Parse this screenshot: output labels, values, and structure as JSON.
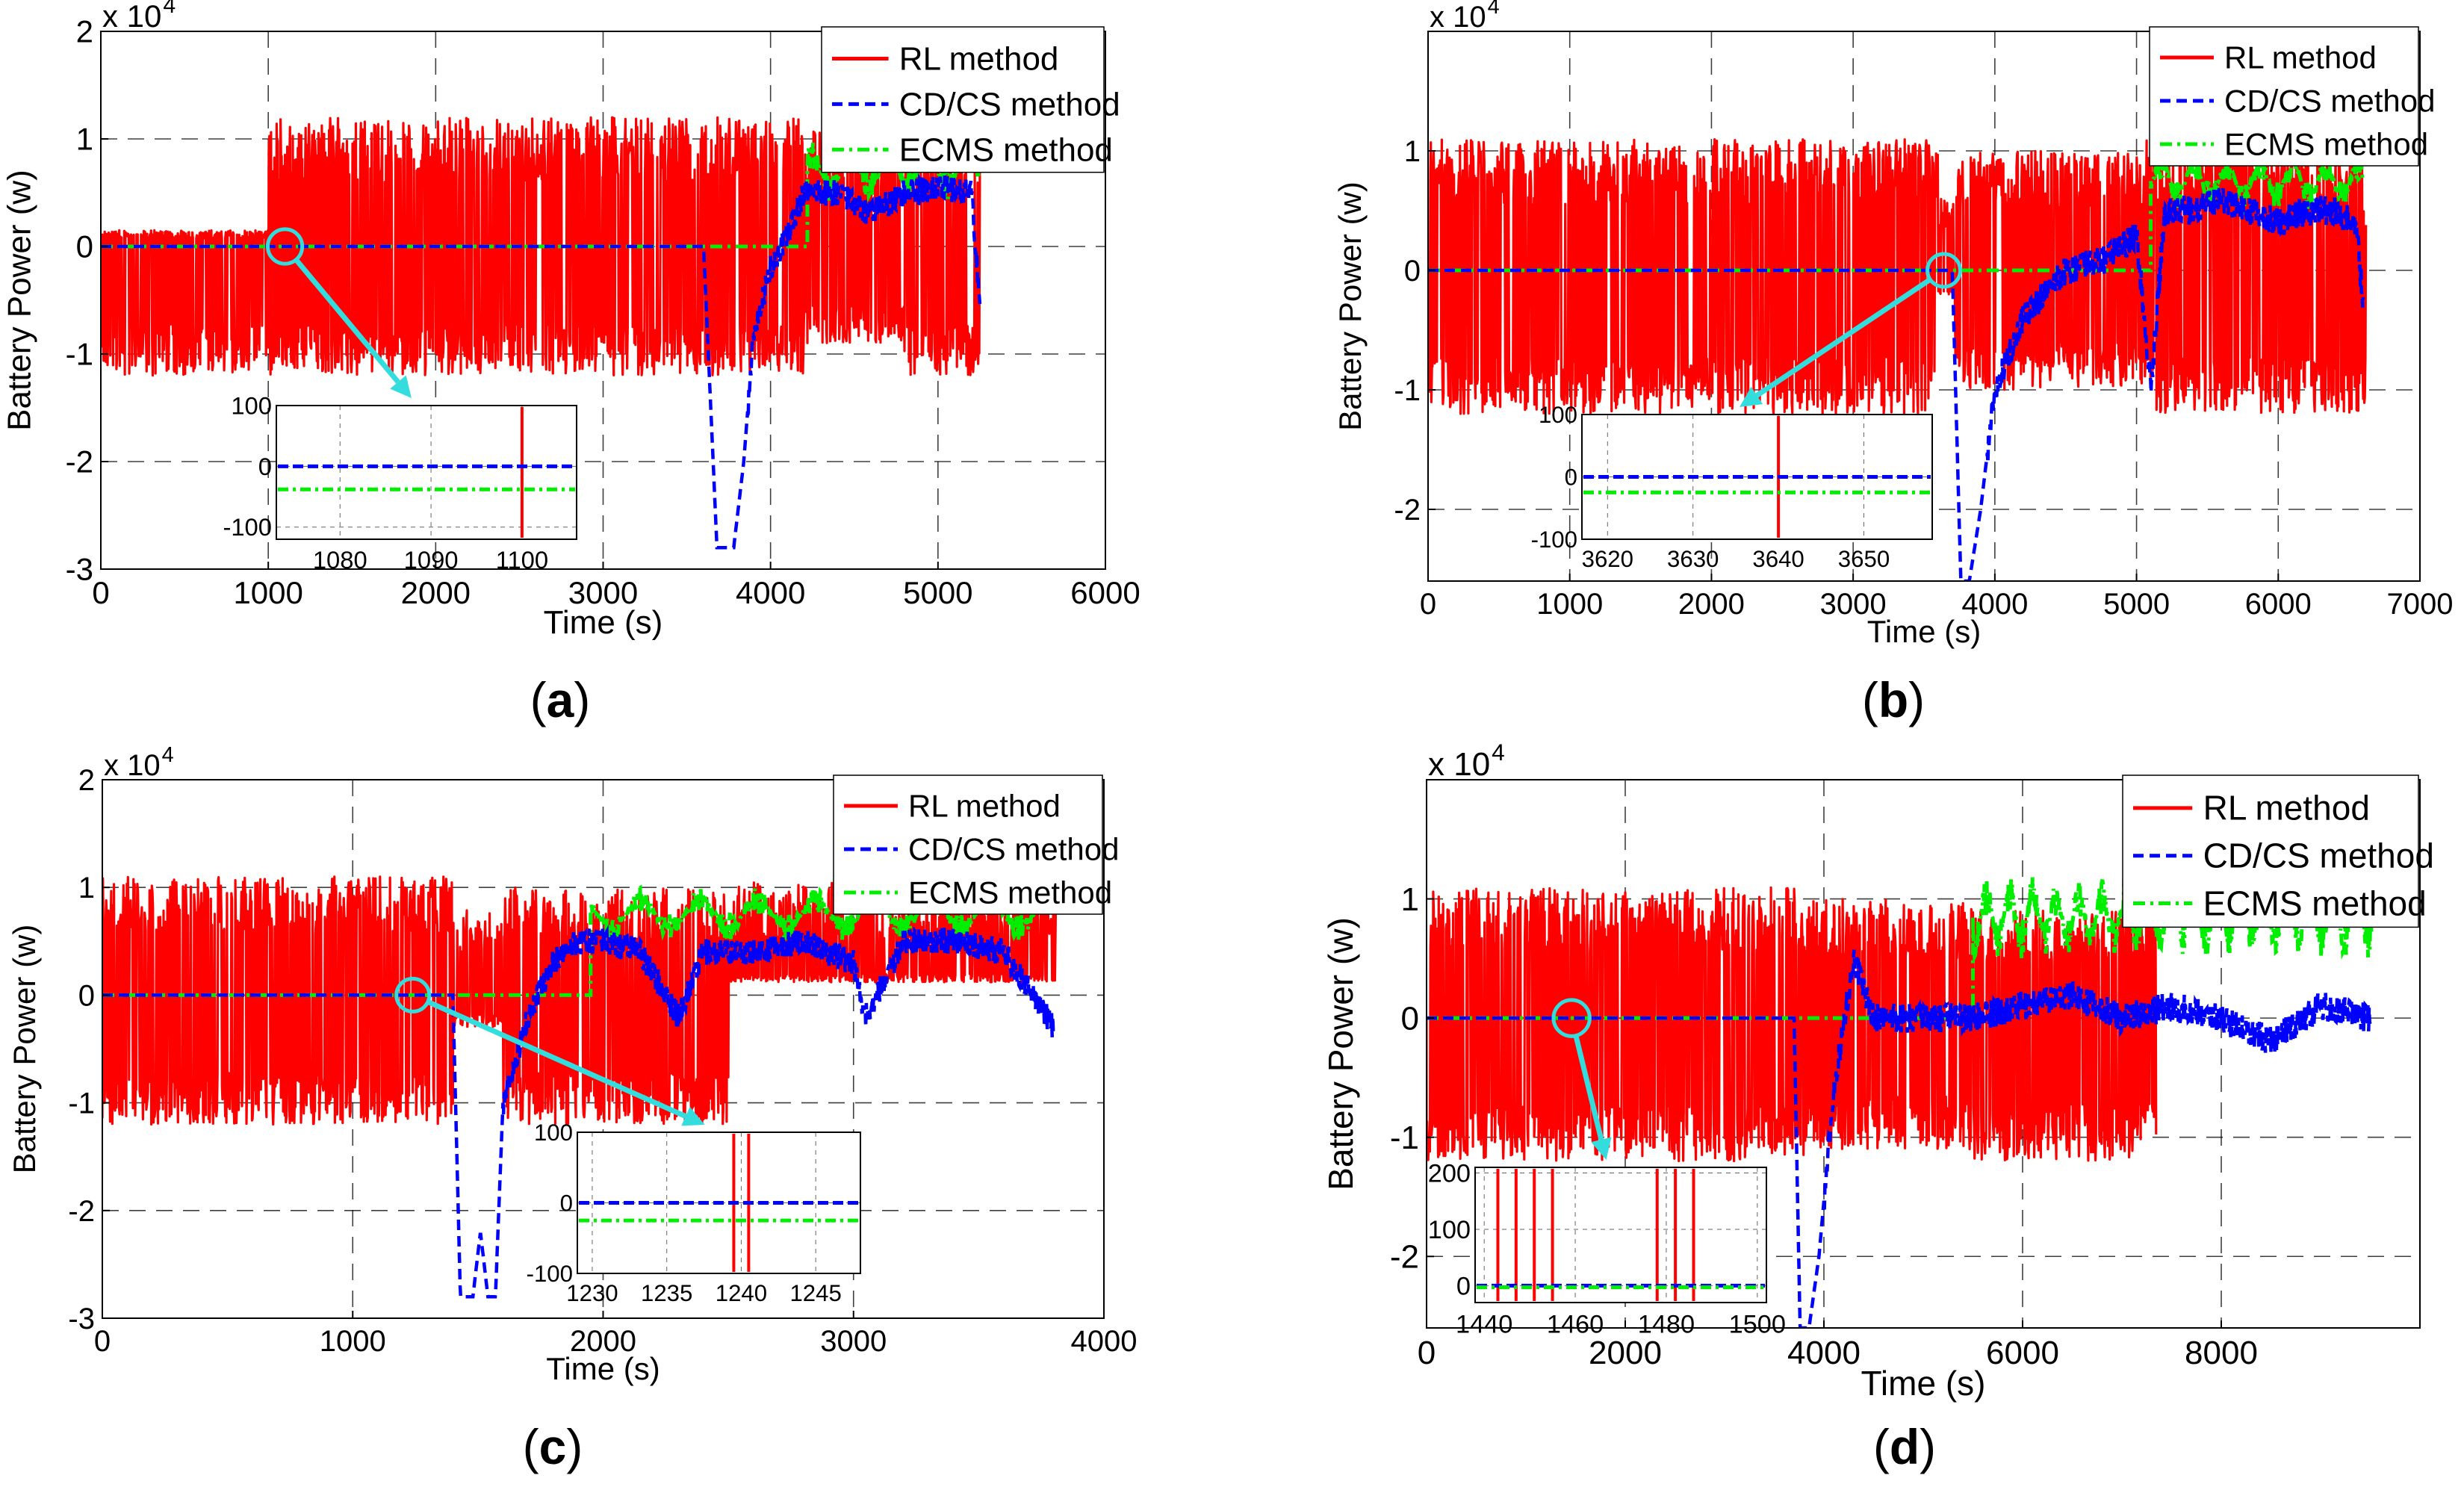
{
  "figure": {
    "legend_labels": [
      "RL method",
      "CD/CS method",
      "ECMS method"
    ],
    "ylabel": "Battery Power (w)",
    "xlabel": "Time (s)",
    "scale_label": "x 10",
    "scale_exponent": "4",
    "colors": {
      "rl": "#ff0000",
      "cdcs": "#0000ff",
      "ecms": "#00ee00",
      "arrow": "#33dddd",
      "grid": "#000000"
    }
  },
  "chart_data": [
    {
      "id": "a",
      "letter": "a",
      "type": "line",
      "title": "",
      "xlabel": "Time (s)",
      "ylabel": "Battery Power (w)",
      "xlim": [
        0,
        6000
      ],
      "ylim": [
        -3,
        2
      ],
      "y_scale": "x 10^4",
      "xticks": [
        0,
        1000,
        2000,
        3000,
        4000,
        5000,
        6000
      ],
      "yticks": [
        -3,
        -2,
        -1,
        0,
        1,
        2
      ],
      "legend_loc": "top-right",
      "grid": true,
      "series": [
        {
          "name": "RL method",
          "style": "solid",
          "summary": "oscillates between about -1.2 and +1.2 (x10^4 W) from 0 to ~5250 s"
        },
        {
          "name": "CD/CS method",
          "style": "dashed",
          "x": [
            0,
            3600,
            3680,
            3720,
            3780,
            3840,
            3900,
            4000,
            4100,
            4200,
            4400,
            4600,
            4800,
            5000,
            5200,
            5250
          ],
          "y": [
            0,
            0,
            -2.8,
            -2.8,
            -2.8,
            -2.0,
            -0.8,
            -0.2,
            0.1,
            0.5,
            0.5,
            0.3,
            0.5,
            0.55,
            0.5,
            -0.5
          ]
        },
        {
          "name": "ECMS method",
          "style": "dash-dot",
          "summary": "0 until ~4200 s, then oscillates between about 0.4 and 1.0"
        }
      ],
      "inset": {
        "xlim": [
          1073,
          1106
        ],
        "ylim": [
          -120,
          100
        ],
        "xticks": [
          1080,
          1090,
          1100
        ],
        "yticks": [
          100,
          0,
          -100
        ],
        "cdcs_y": 0,
        "ecms_y": -38,
        "rl_spike_x": 1100,
        "zoom_point": [
          1100,
          0
        ]
      }
    },
    {
      "id": "b",
      "letter": "b",
      "type": "line",
      "title": "",
      "xlabel": "Time (s)",
      "ylabel": "Battery Power (w)",
      "xlim": [
        0,
        7000
      ],
      "ylim": [
        -2.6,
        2.0
      ],
      "y_scale": "x 10^4",
      "xticks": [
        0,
        1000,
        2000,
        3000,
        4000,
        5000,
        6000,
        7000
      ],
      "yticks": [
        -2,
        -1,
        0,
        1
      ],
      "legend_loc": "top-right",
      "grid": true,
      "series": [
        {
          "name": "RL method",
          "style": "solid",
          "summary": "oscillates between about -1.2 and +1.1 (x10^4 W) from 0 to ~6600 s"
        },
        {
          "name": "CD/CS method",
          "style": "dashed",
          "x": [
            0,
            3700,
            3760,
            3820,
            3900,
            4000,
            4200,
            4500,
            4800,
            5000,
            5100,
            5200,
            5400,
            5600,
            5800,
            6000,
            6200,
            6400,
            6550,
            6600
          ],
          "y": [
            0,
            0,
            -2.6,
            -2.6,
            -2.0,
            -1.0,
            -0.4,
            0.0,
            0.1,
            0.3,
            -1.0,
            0.5,
            0.5,
            0.6,
            0.5,
            0.4,
            0.5,
            0.5,
            0.4,
            -0.3
          ]
        },
        {
          "name": "ECMS method",
          "style": "dash-dot",
          "summary": "0 until ~5100 s, then oscillates between about 0.5 and 1.0"
        }
      ],
      "inset": {
        "xlim": [
          3617,
          3658
        ],
        "ylim": [
          -100,
          100
        ],
        "xticks": [
          3620,
          3630,
          3640,
          3650
        ],
        "yticks": [
          100,
          0,
          -100
        ],
        "cdcs_y": 0,
        "ecms_y": -25,
        "rl_spike_x": 3640,
        "zoom_point": [
          3640,
          0
        ]
      }
    },
    {
      "id": "c",
      "letter": "c",
      "type": "line",
      "title": "",
      "xlabel": "Time (s)",
      "ylabel": "Battery Power (w)",
      "xlim": [
        0,
        4000
      ],
      "ylim": [
        -3,
        2
      ],
      "y_scale": "x 10^4",
      "xticks": [
        0,
        1000,
        2000,
        3000,
        4000
      ],
      "yticks": [
        -3,
        -2,
        -1,
        0,
        1,
        2
      ],
      "legend_loc": "top-right",
      "grid": true,
      "series": [
        {
          "name": "RL method",
          "style": "solid",
          "summary": "oscillates between about -1.2 and +1.1 (x10^4 W) from 0 to ~3800 s"
        },
        {
          "name": "CD/CS method",
          "style": "dashed",
          "x": [
            0,
            1400,
            1430,
            1480,
            1510,
            1540,
            1570,
            1600,
            1700,
            1800,
            1900,
            2000,
            2150,
            2300,
            2400,
            2600,
            2800,
            3000,
            3050,
            3200,
            3400,
            3600,
            3800
          ],
          "y": [
            0,
            0,
            -2.8,
            -2.8,
            -2.2,
            -2.8,
            -2.8,
            -1.0,
            -0.2,
            0.3,
            0.5,
            0.5,
            0.4,
            -0.2,
            0.4,
            0.4,
            0.5,
            0.3,
            -0.2,
            0.5,
            0.5,
            0.4,
            -0.3
          ]
        },
        {
          "name": "ECMS method",
          "style": "dash-dot",
          "summary": "0 until ~1950 s, then oscillates between about 0.5 and 1.0"
        }
      ],
      "inset": {
        "xlim": [
          1229,
          1248
        ],
        "ylim": [
          -100,
          100
        ],
        "xticks": [
          1230,
          1235,
          1240,
          1245
        ],
        "yticks": [
          100,
          0,
          -100
        ],
        "cdcs_y": 0,
        "ecms_y": -25,
        "rl_spike_x": [
          1239.5,
          1240.5
        ],
        "zoom_point": [
          1240,
          0
        ]
      }
    },
    {
      "id": "d",
      "letter": "d",
      "type": "line",
      "title": "",
      "xlabel": "Time (s)",
      "ylabel": "Battery Power (w)",
      "xlim": [
        0,
        10000
      ],
      "ylim": [
        -2.6,
        2.0
      ],
      "y_scale": "x 10^4",
      "xticks": [
        0,
        2000,
        4000,
        6000,
        8000
      ],
      "yticks": [
        -2,
        -1,
        0,
        1
      ],
      "legend_loc": "top-right",
      "grid": true,
      "series": [
        {
          "name": "RL method",
          "style": "solid",
          "summary": "oscillates between about -1.2 and +1.1 (x10^4 W) from 0 to ~7300 s"
        },
        {
          "name": "CD/CS method",
          "style": "dashed",
          "x": [
            0,
            3700,
            3760,
            3850,
            3950,
            4100,
            4300,
            4500,
            5000,
            5500,
            6000,
            6500,
            7000,
            7500,
            8000,
            8500,
            9000,
            9500
          ],
          "y": [
            0,
            0,
            -2.6,
            -2.6,
            -2.0,
            -0.6,
            0.5,
            0.0,
            0.0,
            0.0,
            0.1,
            0.2,
            0.0,
            0.1,
            0.0,
            -0.2,
            0.1,
            0.0
          ]
        },
        {
          "name": "ECMS method",
          "style": "dash-dot",
          "summary": "0 until ~5500 s, then oscillates between about 0.5 and 1.2"
        }
      ],
      "inset": {
        "xlim": [
          1438,
          1502
        ],
        "ylim": [
          -30,
          210
        ],
        "xticks": [
          1440,
          1460,
          1480,
          1500
        ],
        "yticks": [
          200,
          100,
          0
        ],
        "cdcs_y": 0,
        "ecms_y": -3,
        "rl_spike_x": [
          1443,
          1447,
          1451,
          1455,
          1478,
          1482,
          1486
        ],
        "zoom_point": [
          1460,
          0
        ]
      }
    }
  ]
}
